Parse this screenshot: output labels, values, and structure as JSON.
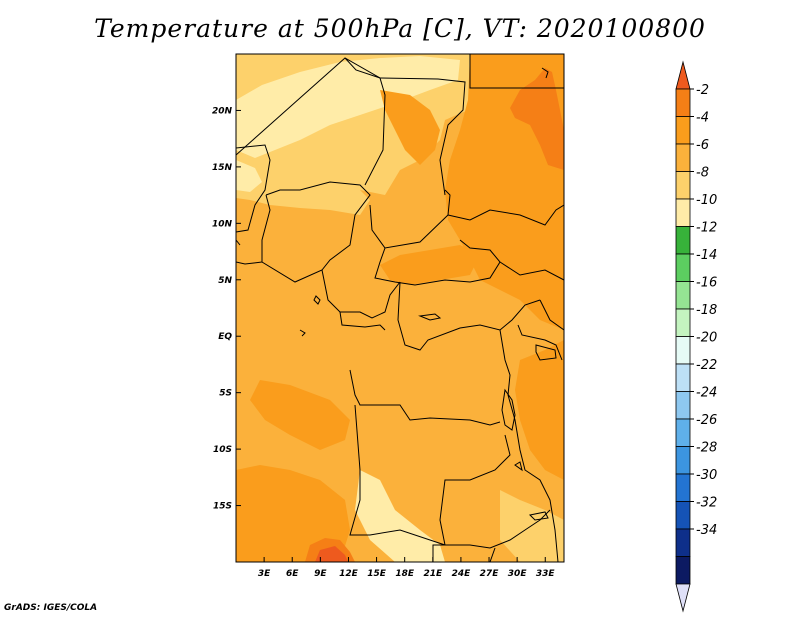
{
  "title": "Temperature at 500hPa [C], VT: 2020100800",
  "credit": "GrADS: IGES/COLA",
  "map": {
    "lon_range": [
      0,
      35
    ],
    "lat_range": [
      -20,
      25
    ],
    "lon_ticks": [
      {
        "value": 3,
        "label": "3E"
      },
      {
        "value": 6,
        "label": "6E"
      },
      {
        "value": 9,
        "label": "9E"
      },
      {
        "value": 12,
        "label": "12E"
      },
      {
        "value": 15,
        "label": "15E"
      },
      {
        "value": 18,
        "label": "18E"
      },
      {
        "value": 21,
        "label": "21E"
      },
      {
        "value": 24,
        "label": "24E"
      },
      {
        "value": 27,
        "label": "27E"
      },
      {
        "value": 30,
        "label": "30E"
      },
      {
        "value": 33,
        "label": "33E"
      }
    ],
    "lat_ticks": [
      {
        "value": 20,
        "label": "20N"
      },
      {
        "value": 15,
        "label": "15N"
      },
      {
        "value": 10,
        "label": "10N"
      },
      {
        "value": 5,
        "label": "5N"
      },
      {
        "value": 0,
        "label": "EQ"
      },
      {
        "value": -5,
        "label": "5S"
      },
      {
        "value": -10,
        "label": "10S"
      },
      {
        "value": -15,
        "label": "15S"
      }
    ],
    "background_color": "#fbb13b"
  },
  "colorbar": {
    "labels": [
      "-2",
      "-4",
      "-6",
      "-8",
      "-10",
      "-12",
      "-14",
      "-16",
      "-18",
      "-20",
      "-22",
      "-24",
      "-26",
      "-28",
      "-30",
      "-32",
      "-34"
    ],
    "colors": [
      "#ee5a1e",
      "#f57f16",
      "#fa9d1c",
      "#fbb13b",
      "#fdd16b",
      "#ffeca8",
      "#37b23a",
      "#5cce60",
      "#95e493",
      "#c4f4c0",
      "#e6fbf6",
      "#bde0f6",
      "#8ec8f0",
      "#5fb0ea",
      "#3c95e0",
      "#2374d2",
      "#1553b6",
      "#0e2f8a",
      "#0c1a62",
      "#dfe0f8"
    ]
  }
}
